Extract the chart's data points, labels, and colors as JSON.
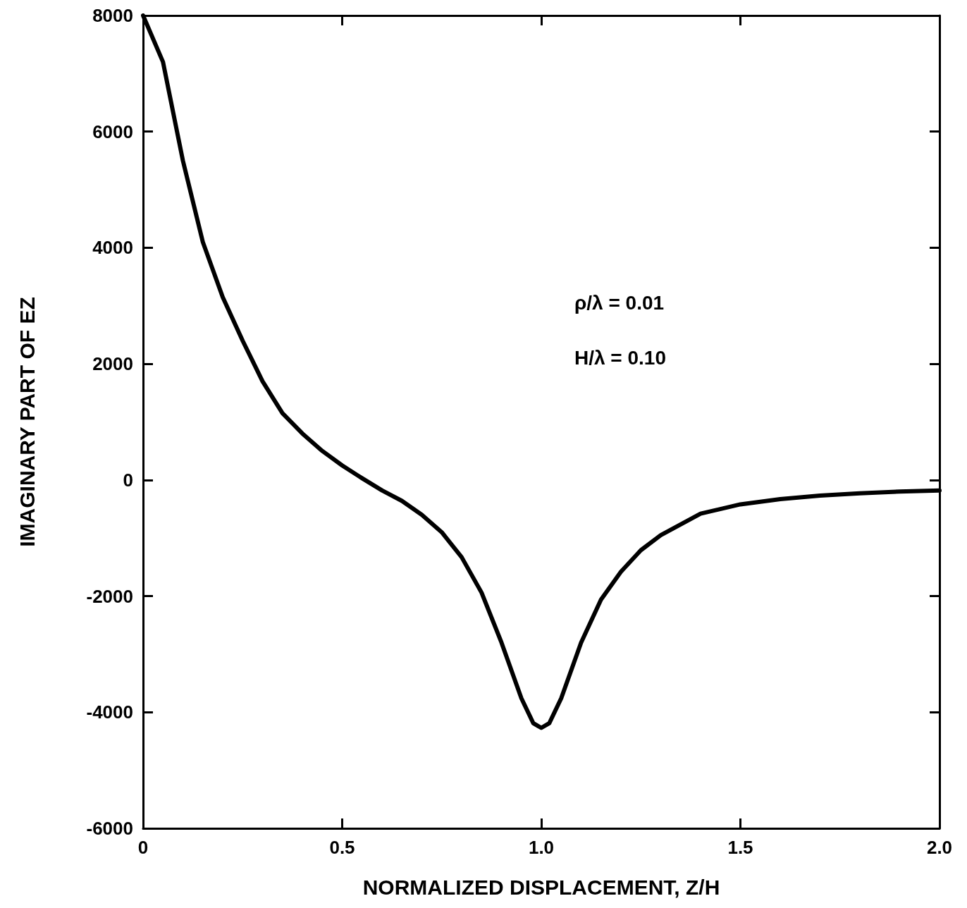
{
  "chart_data": {
    "type": "line",
    "xlabel": "NORMALIZED DISPLACEMENT, Z/H",
    "ylabel": "IMAGINARY PART OF EZ",
    "x": [
      0,
      0.05,
      0.1,
      0.15,
      0.2,
      0.25,
      0.3,
      0.35,
      0.4,
      0.45,
      0.5,
      0.55,
      0.6,
      0.65,
      0.7,
      0.75,
      0.8,
      0.85,
      0.9,
      0.95,
      0.98,
      1.0,
      1.02,
      1.05,
      1.1,
      1.15,
      1.2,
      1.25,
      1.3,
      1.4,
      1.5,
      1.6,
      1.7,
      1.8,
      1.9,
      2.0
    ],
    "series": [
      {
        "color": "#000000",
        "values": [
          8000,
          7200,
          5500,
          4100,
          3150,
          2400,
          1700,
          1150,
          800,
          500,
          250,
          30,
          -180,
          -360,
          -600,
          -900,
          -1330,
          -1940,
          -2800,
          -3760,
          -4190,
          -4270,
          -4190,
          -3760,
          -2800,
          -2060,
          -1580,
          -1210,
          -950,
          -580,
          -420,
          -330,
          -270,
          -230,
          -200,
          -180
        ]
      }
    ],
    "xlim": [
      0,
      2
    ],
    "xticks": [
      0,
      0.5,
      {
        "value": 1,
        "label": "1.0"
      },
      1.5,
      {
        "value": 2,
        "label": "2.0"
      }
    ],
    "ylim": [
      -6000,
      8000
    ],
    "yticks": [
      -6000,
      -4000,
      -2000,
      0,
      2000,
      4000,
      6000,
      8000
    ],
    "annotations": [
      "ρ/λ = 0.01",
      "H/λ = 0.10"
    ],
    "grid": false,
    "marker": "none",
    "line_style": "solid"
  }
}
